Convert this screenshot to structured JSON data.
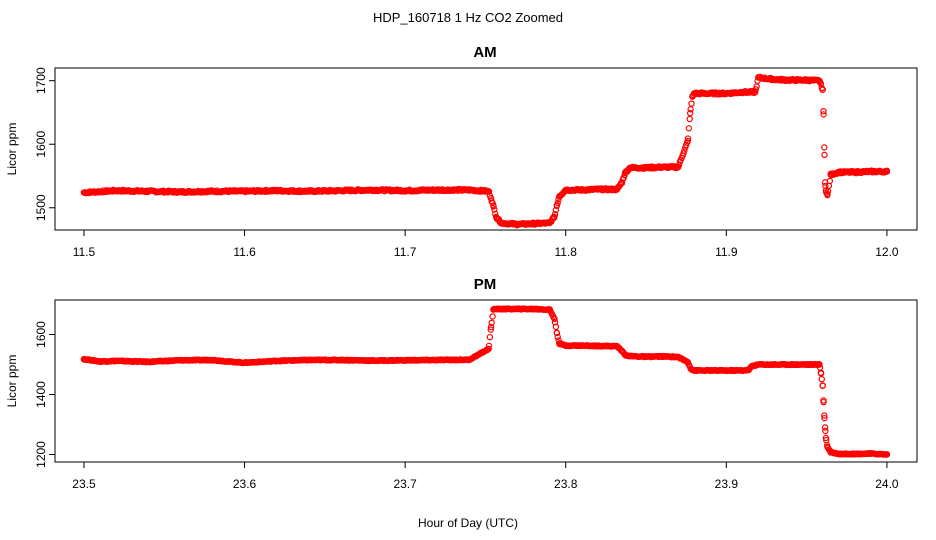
{
  "figure": {
    "title": "HDP_160718  1 Hz CO2 Zoomed",
    "xlabel": "Hour of Day (UTC)"
  },
  "chart_data": [
    {
      "type": "scatter",
      "title": "AM",
      "xlabel": "",
      "ylabel": "Licor ppm",
      "xlim": [
        11.5,
        12.0
      ],
      "ylim": [
        1465,
        1720
      ],
      "xticks": [
        11.5,
        11.6,
        11.7,
        11.8,
        11.9,
        12.0
      ],
      "xtick_labels": [
        "11.5",
        "11.6",
        "11.7",
        "11.8",
        "11.9",
        "12.0"
      ],
      "yticks": [
        1500,
        1600,
        1700
      ],
      "ytick_labels": [
        "1500",
        "1600",
        "1700"
      ],
      "grid": false,
      "marker_color": "#ff0000",
      "series": [
        {
          "x": [
            11.5,
            11.52,
            11.54,
            11.56,
            11.58,
            11.6,
            11.62,
            11.64,
            11.66,
            11.68,
            11.7,
            11.72,
            11.74,
            11.752,
            11.7535,
            11.755,
            11.757,
            11.76,
            11.77,
            11.78,
            11.79,
            11.793,
            11.7945,
            11.796,
            11.8,
            11.81,
            11.82,
            11.832,
            11.835,
            11.837,
            11.84,
            11.85,
            11.86,
            11.87,
            11.876,
            11.8775,
            11.879,
            11.88,
            11.89,
            11.9,
            11.91,
            11.918,
            11.92,
            11.93,
            11.94,
            11.95,
            11.958,
            11.96,
            11.9605,
            11.961,
            11.9615,
            11.962,
            11.963,
            11.965,
            11.97,
            11.98,
            11.99,
            12.0
          ],
          "y": [
            1524,
            1527,
            1526,
            1525,
            1526,
            1526,
            1527,
            1526,
            1527,
            1528,
            1527,
            1528,
            1528,
            1526,
            1515,
            1502,
            1484,
            1476,
            1474,
            1475,
            1476,
            1486,
            1504,
            1518,
            1528,
            1528,
            1529,
            1529,
            1540,
            1555,
            1563,
            1563,
            1564,
            1564,
            1605,
            1649,
            1676,
            1680,
            1680,
            1680,
            1682,
            1682,
            1705,
            1702,
            1701,
            1701,
            1700,
            1686,
            1652,
            1595,
            1540,
            1527,
            1520,
            1552,
            1556,
            1556,
            1557,
            1557
          ]
        }
      ]
    },
    {
      "type": "scatter",
      "title": "PM",
      "xlabel": "",
      "ylabel": "Licor ppm",
      "xlim": [
        23.5,
        24.0
      ],
      "ylim": [
        1175,
        1715
      ],
      "xticks": [
        23.5,
        23.6,
        23.7,
        23.8,
        23.9,
        24.0
      ],
      "xtick_labels": [
        "23.5",
        "23.6",
        "23.7",
        "23.8",
        "23.9",
        "24.0"
      ],
      "yticks": [
        1200,
        1400,
        1600
      ],
      "ytick_labels": [
        "1200",
        "1400",
        "1600"
      ],
      "grid": false,
      "marker_color": "#ff0000",
      "series": [
        {
          "x": [
            23.5,
            23.51,
            23.52,
            23.54,
            23.56,
            23.58,
            23.59,
            23.6,
            23.62,
            23.64,
            23.66,
            23.68,
            23.7,
            23.72,
            23.74,
            23.752,
            23.7535,
            23.755,
            23.757,
            23.76,
            23.77,
            23.78,
            23.79,
            23.793,
            23.7945,
            23.796,
            23.8,
            23.81,
            23.82,
            23.832,
            23.835,
            23.837,
            23.84,
            23.85,
            23.86,
            23.87,
            23.876,
            23.878,
            23.88,
            23.89,
            23.9,
            23.91,
            23.914,
            23.916,
            23.92,
            23.93,
            23.94,
            23.95,
            23.958,
            23.959,
            23.96,
            23.9605,
            23.961,
            23.9615,
            23.962,
            23.963,
            23.965,
            23.97,
            23.98,
            23.99,
            24.0
          ],
          "y": [
            1518,
            1510,
            1512,
            1509,
            1514,
            1515,
            1510,
            1506,
            1512,
            1515,
            1515,
            1513,
            1514,
            1515,
            1516,
            1552,
            1625,
            1683,
            1685,
            1685,
            1685,
            1685,
            1683,
            1652,
            1605,
            1570,
            1563,
            1563,
            1562,
            1561,
            1545,
            1532,
            1528,
            1526,
            1527,
            1525,
            1508,
            1485,
            1480,
            1480,
            1480,
            1480,
            1482,
            1495,
            1500,
            1500,
            1500,
            1500,
            1500,
            1470,
            1430,
            1380,
            1330,
            1290,
            1255,
            1225,
            1208,
            1202,
            1202,
            1203,
            1200
          ]
        }
      ]
    }
  ]
}
